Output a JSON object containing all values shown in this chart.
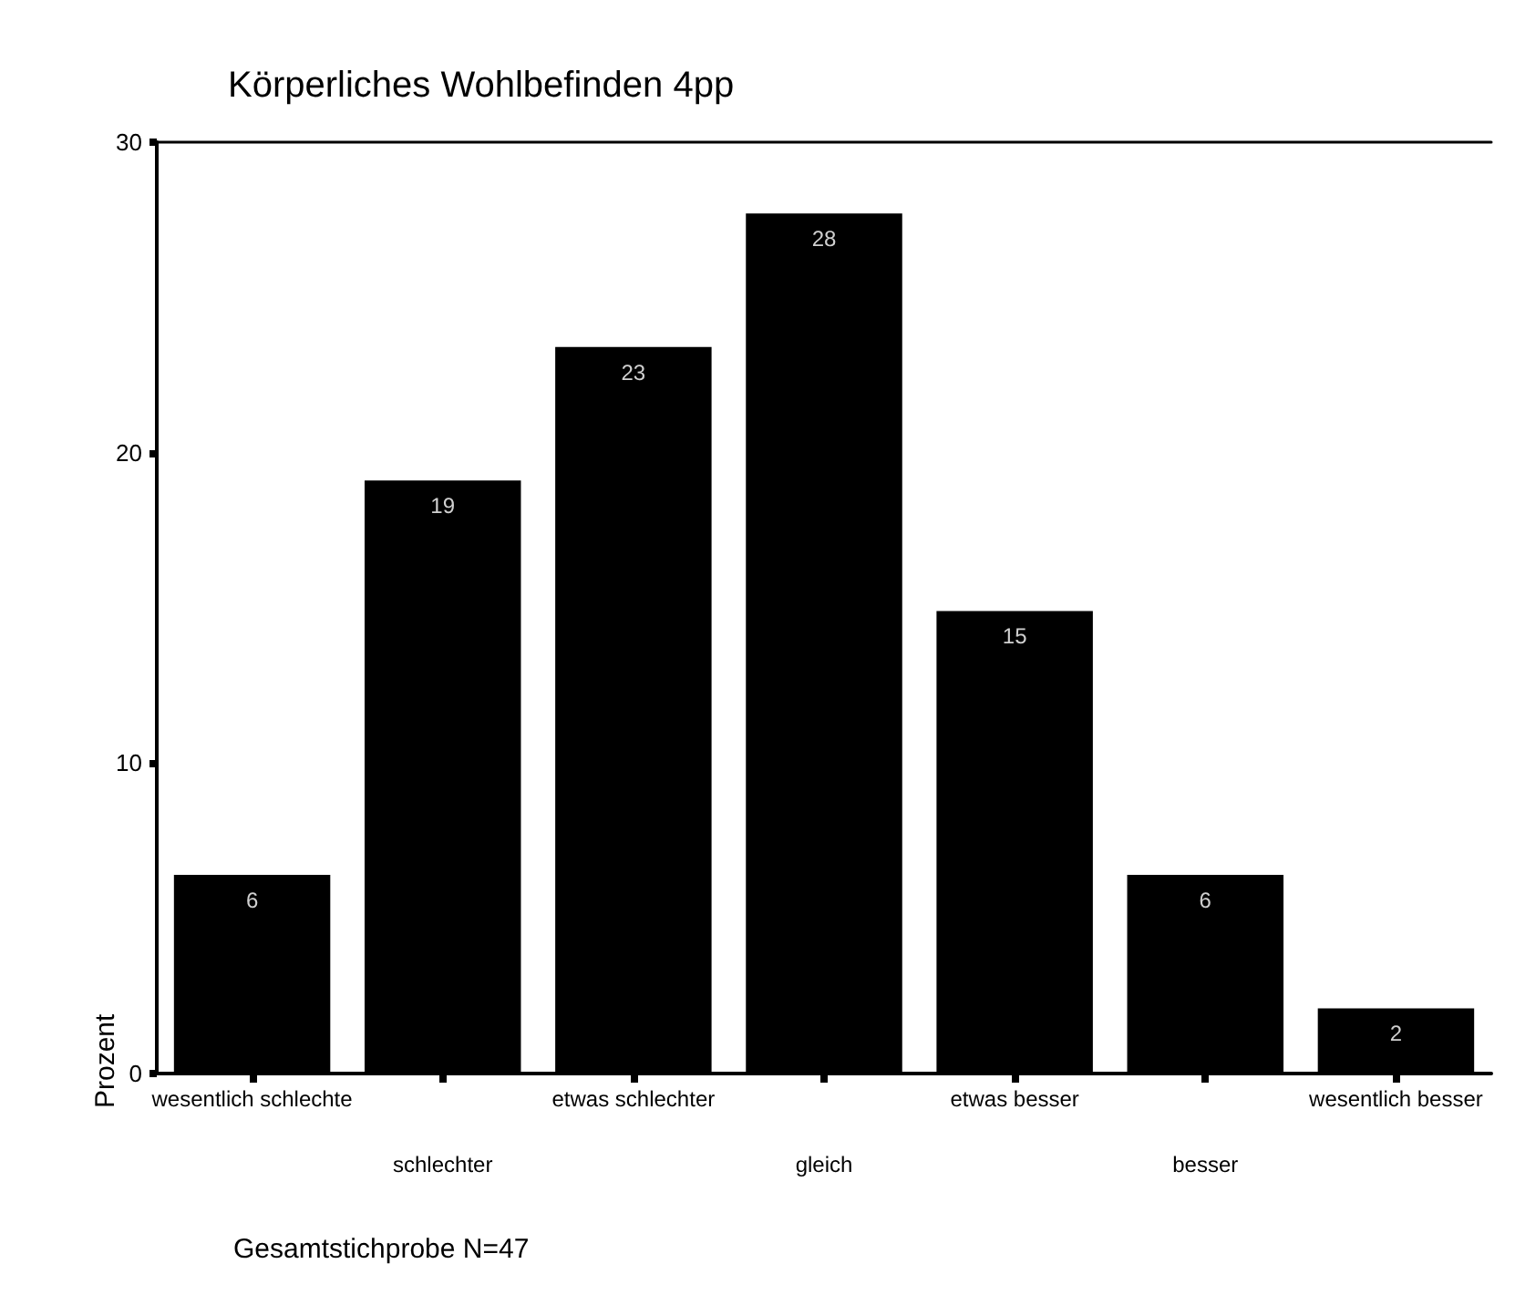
{
  "chart_data": {
    "type": "bar",
    "title": "Körperliches Wohlbefinden 4pp",
    "ylabel": "Prozent",
    "categories": [
      "wesentlich schlechte",
      "schlechter",
      "etwas schlechter",
      "gleich",
      "etwas besser",
      "besser",
      "wesentlich besser"
    ],
    "values": [
      6.4,
      19.1,
      23.4,
      27.7,
      14.9,
      6.4,
      2.1
    ],
    "value_labels": [
      "6",
      "19",
      "23",
      "28",
      "15",
      "6",
      "2"
    ],
    "color": "#000000",
    "ylim": [
      0,
      30
    ],
    "yticks": [
      0,
      10,
      20,
      30
    ],
    "grid": false,
    "annotations": [
      "Gesamtstichprobe N=47"
    ]
  }
}
